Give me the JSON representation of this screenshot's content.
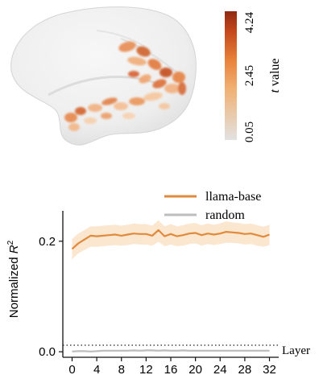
{
  "brain_panel": {
    "colorbar": {
      "label_var": "t",
      "label_rest": " value",
      "ticks": [
        "0.05",
        "2.45",
        "4.24"
      ],
      "min": 0.05,
      "max": 4.24,
      "colors": [
        "#e2e2e2",
        "#f0b072",
        "#e8823a",
        "#c2461a",
        "#8f2a12"
      ]
    }
  },
  "chart_data": {
    "type": "line",
    "xlabel": "Layer",
    "ylabel": "Normalized R²",
    "ylabel_main": "Normalized ",
    "ylabel_var": "R",
    "ylabel_sup": "2",
    "xticks": [
      0,
      4,
      8,
      12,
      16,
      20,
      24,
      28,
      32
    ],
    "xtick_labels": [
      "0",
      "4",
      "8",
      "12",
      "16",
      "20",
      "24",
      "28",
      "32"
    ],
    "yticks": [
      0.0,
      0.2
    ],
    "ytick_labels": [
      "0.0",
      "0.2"
    ],
    "xlim": [
      -1.5,
      33.5
    ],
    "ylim": [
      -0.01,
      0.255
    ],
    "grid": false,
    "legend": "top-right",
    "reference_line": {
      "y": 0,
      "style": "dotted"
    },
    "series": [
      {
        "name": "llama-base",
        "color": "#e08a3c",
        "band_color": "#fbe6cf",
        "x": [
          0,
          1,
          2,
          3,
          4,
          5,
          6,
          7,
          8,
          9,
          10,
          11,
          12,
          13,
          14,
          15,
          16,
          17,
          18,
          19,
          20,
          21,
          22,
          23,
          24,
          25,
          26,
          27,
          28,
          29,
          30,
          31,
          32
        ],
        "values": [
          0.186,
          0.196,
          0.203,
          0.21,
          0.209,
          0.21,
          0.211,
          0.212,
          0.21,
          0.212,
          0.214,
          0.213,
          0.213,
          0.21,
          0.22,
          0.209,
          0.213,
          0.209,
          0.211,
          0.214,
          0.215,
          0.211,
          0.214,
          0.212,
          0.214,
          0.217,
          0.216,
          0.215,
          0.213,
          0.214,
          0.211,
          0.208,
          0.212
        ],
        "lower": [
          0.167,
          0.178,
          0.184,
          0.19,
          0.19,
          0.191,
          0.192,
          0.193,
          0.192,
          0.193,
          0.195,
          0.194,
          0.194,
          0.192,
          0.199,
          0.191,
          0.194,
          0.191,
          0.192,
          0.195,
          0.196,
          0.192,
          0.195,
          0.193,
          0.195,
          0.197,
          0.197,
          0.196,
          0.194,
          0.195,
          0.192,
          0.19,
          0.193
        ],
        "upper": [
          0.204,
          0.214,
          0.22,
          0.227,
          0.227,
          0.228,
          0.229,
          0.23,
          0.228,
          0.23,
          0.232,
          0.231,
          0.231,
          0.228,
          0.238,
          0.227,
          0.231,
          0.227,
          0.229,
          0.232,
          0.233,
          0.229,
          0.232,
          0.23,
          0.232,
          0.236,
          0.234,
          0.233,
          0.231,
          0.232,
          0.229,
          0.226,
          0.23
        ]
      },
      {
        "name": "random",
        "color": "#bdbdbd",
        "band_color": "#e6e6e6",
        "x": [
          0,
          1,
          2,
          3,
          4,
          5,
          6,
          7,
          8,
          9,
          10,
          11,
          12,
          13,
          14,
          15,
          16,
          17,
          18,
          19,
          20,
          21,
          22,
          23,
          24,
          25,
          26,
          27,
          28,
          29,
          30,
          31,
          32
        ],
        "values": [
          0.0005,
          0.001,
          0.001,
          0.0005,
          0.001,
          0.002,
          0.002,
          0.002,
          0.002,
          0.002,
          0.0025,
          0.002,
          0.0025,
          0.0025,
          0.002,
          0.0025,
          0.002,
          0.002,
          0.0025,
          0.002,
          0.002,
          0.002,
          0.002,
          0.002,
          0.002,
          0.002,
          0.002,
          0.002,
          0.002,
          0.002,
          0.002,
          0.002,
          0.002
        ],
        "lower": [
          -0.001,
          -0.0005,
          -0.0005,
          -0.001,
          -0.0005,
          0.0,
          0.0,
          0.0,
          0.0,
          0.0,
          0.0005,
          0.0,
          0.0005,
          0.0005,
          0.0,
          0.0005,
          0.0,
          0.0,
          0.0005,
          0.0,
          0.0,
          0.0,
          0.0,
          0.0,
          0.0,
          0.0,
          0.0,
          0.0,
          0.0,
          0.0,
          0.0,
          0.0,
          0.0
        ],
        "upper": [
          0.002,
          0.0025,
          0.0025,
          0.002,
          0.0025,
          0.0035,
          0.0035,
          0.0035,
          0.0035,
          0.0035,
          0.004,
          0.0035,
          0.004,
          0.004,
          0.0035,
          0.004,
          0.0035,
          0.0035,
          0.004,
          0.0035,
          0.0035,
          0.0035,
          0.0035,
          0.0035,
          0.0035,
          0.0035,
          0.0035,
          0.0035,
          0.0035,
          0.0035,
          0.0035,
          0.0035,
          0.0035
        ]
      }
    ]
  }
}
